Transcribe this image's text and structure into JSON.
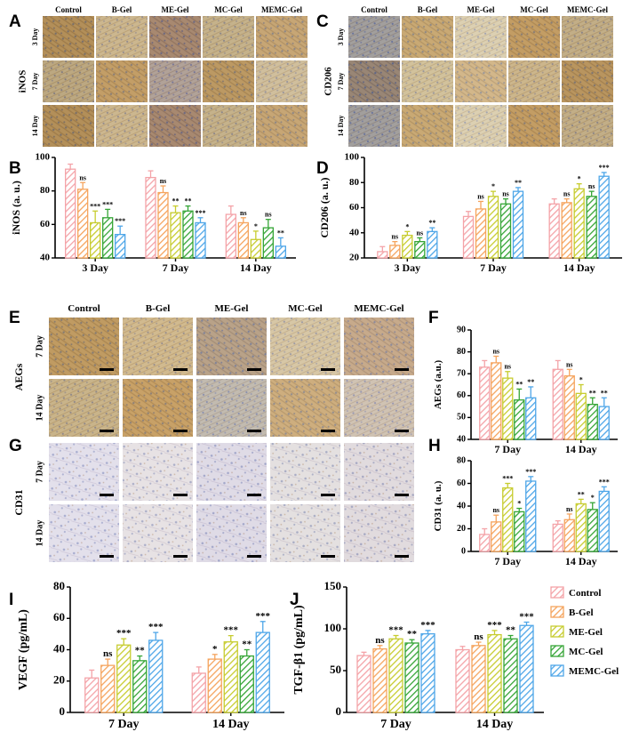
{
  "panel_labels": [
    "A",
    "B",
    "C",
    "D",
    "E",
    "F",
    "G",
    "H",
    "I",
    "J"
  ],
  "groups": [
    "Control",
    "B-Gel",
    "ME-Gel",
    "MC-Gel",
    "MEMC-Gel"
  ],
  "colors": {
    "Control": "#f4a3a8",
    "B-Gel": "#f5a45d",
    "ME-Gel": "#c7cc2f",
    "MC-Gel": "#35a536",
    "MEMC-Gel": "#4ea6e8"
  },
  "legend": [
    "Control",
    "B-Gel",
    "ME-Gel",
    "MC-Gel",
    "MEMC-Gel"
  ],
  "micrographs": {
    "A": {
      "columns": [
        "Control",
        "B-Gel",
        "ME-Gel",
        "MC-Gel",
        "MEMC-Gel"
      ],
      "rows": [
        "3 Day",
        "7 Day",
        "14 Day"
      ],
      "side_label": "iNOS"
    },
    "C": {
      "columns": [
        "Control",
        "B-Gel",
        "ME-Gel",
        "MC-Gel",
        "MEMC-Gel"
      ],
      "rows": [
        "3 Day",
        "7 Day",
        "14 Day"
      ],
      "side_label": "CD206"
    },
    "E": {
      "columns": [
        "Control",
        "B-Gel",
        "ME-Gel",
        "MC-Gel",
        "MEMC-Gel"
      ],
      "rows": [
        "7 Day",
        "14 Day"
      ],
      "side_label": "AEGs"
    },
    "G": {
      "columns": [],
      "rows": [
        "7 Day",
        "14 Day"
      ],
      "side_label": "CD31"
    }
  },
  "chart_data": [
    {
      "panel": "B",
      "type": "bar",
      "ylabel": "iNOS (a. u.)",
      "ylim": [
        40,
        100
      ],
      "yticks": [
        40,
        60,
        80,
        100
      ],
      "categories": [
        "3 Day",
        "7 Day",
        "14 Day"
      ],
      "series": [
        {
          "name": "Control",
          "values": [
            93,
            88,
            66
          ],
          "errors": [
            3,
            4,
            5
          ]
        },
        {
          "name": "B-Gel",
          "values": [
            81,
            79,
            61
          ],
          "errors": [
            4,
            4,
            3
          ]
        },
        {
          "name": "ME-Gel",
          "values": [
            61,
            67,
            51
          ],
          "errors": [
            7,
            4,
            5
          ]
        },
        {
          "name": "MC-Gel",
          "values": [
            64,
            68,
            58
          ],
          "errors": [
            5,
            3,
            5
          ]
        },
        {
          "name": "MEMC-Gel",
          "values": [
            54,
            61,
            47
          ],
          "errors": [
            5,
            3,
            5
          ]
        }
      ],
      "significance": [
        [
          "",
          "",
          "",
          ""
        ],
        [
          "ns",
          "***",
          "***",
          "***"
        ],
        [
          "ns",
          "**",
          "**",
          "***"
        ],
        [
          "ns",
          "*",
          "ns",
          "**"
        ]
      ],
      "sig": [
        [
          "ns",
          "***",
          "***",
          "***"
        ],
        [
          "ns",
          "**",
          "**",
          "***"
        ],
        [
          "ns",
          "*",
          "ns",
          "**"
        ]
      ]
    },
    {
      "panel": "D",
      "type": "bar",
      "ylabel": "CD206 (a. u.)",
      "ylim": [
        20,
        100
      ],
      "yticks": [
        20,
        40,
        60,
        80,
        100
      ],
      "categories": [
        "3 Day",
        "7 Day",
        "14 Day"
      ],
      "series": [
        {
          "name": "Control",
          "values": [
            25,
            53,
            63
          ],
          "errors": [
            4,
            4,
            4
          ]
        },
        {
          "name": "B-Gel",
          "values": [
            30,
            59,
            64
          ],
          "errors": [
            3,
            6,
            3
          ]
        },
        {
          "name": "ME-Gel",
          "values": [
            38,
            69,
            75
          ],
          "errors": [
            3,
            4,
            4
          ]
        },
        {
          "name": "MC-Gel",
          "values": [
            33,
            63,
            69
          ],
          "errors": [
            3,
            4,
            4
          ]
        },
        {
          "name": "MEMC-Gel",
          "values": [
            41,
            73,
            85
          ],
          "errors": [
            3,
            3,
            3
          ]
        }
      ],
      "sig": [
        [
          "ns",
          "*",
          "ns",
          "**"
        ],
        [
          "ns",
          "*",
          "ns",
          "**"
        ],
        [
          "ns",
          "*",
          "ns",
          "***"
        ]
      ]
    },
    {
      "panel": "F",
      "type": "bar",
      "ylabel": "AEGs (a.u.)",
      "ylim": [
        40,
        90
      ],
      "yticks": [
        40,
        50,
        60,
        70,
        80,
        90
      ],
      "categories": [
        "7 Day",
        "14 Day"
      ],
      "series": [
        {
          "name": "Control",
          "values": [
            73,
            72
          ],
          "errors": [
            3,
            4
          ]
        },
        {
          "name": "B-Gel",
          "values": [
            75,
            69
          ],
          "errors": [
            3,
            3
          ]
        },
        {
          "name": "ME-Gel",
          "values": [
            68,
            61
          ],
          "errors": [
            3,
            4
          ]
        },
        {
          "name": "MC-Gel",
          "values": [
            58,
            56
          ],
          "errors": [
            5,
            3
          ]
        },
        {
          "name": "MEMC-Gel",
          "values": [
            59,
            55
          ],
          "errors": [
            5,
            4
          ]
        }
      ],
      "sig": [
        [
          "ns",
          "ns",
          "**",
          "**"
        ],
        [
          "ns",
          "*",
          "**",
          "**"
        ]
      ]
    },
    {
      "panel": "H",
      "type": "bar",
      "ylabel": "CD31 (a. u.)",
      "ylim": [
        0,
        80
      ],
      "yticks": [
        0,
        20,
        40,
        60,
        80
      ],
      "categories": [
        "7 Day",
        "14 Day"
      ],
      "series": [
        {
          "name": "Control",
          "values": [
            15,
            24
          ],
          "errors": [
            5,
            3
          ]
        },
        {
          "name": "B-Gel",
          "values": [
            26,
            28
          ],
          "errors": [
            6,
            5
          ]
        },
        {
          "name": "ME-Gel",
          "values": [
            56,
            42
          ],
          "errors": [
            4,
            4
          ]
        },
        {
          "name": "MC-Gel",
          "values": [
            35,
            37
          ],
          "errors": [
            3,
            6
          ]
        },
        {
          "name": "MEMC-Gel",
          "values": [
            62,
            53
          ],
          "errors": [
            4,
            4
          ]
        }
      ],
      "sig": [
        [
          "ns",
          "***",
          "*",
          "***"
        ],
        [
          "ns",
          "**",
          "*",
          "***"
        ]
      ]
    },
    {
      "panel": "I",
      "type": "bar",
      "ylabel": "VEGF (pg/mL)",
      "ylim": [
        0,
        80
      ],
      "yticks": [
        0,
        20,
        40,
        60,
        80
      ],
      "categories": [
        "7 Day",
        "14 Day"
      ],
      "series": [
        {
          "name": "Control",
          "values": [
            22,
            25
          ],
          "errors": [
            5,
            4
          ]
        },
        {
          "name": "B-Gel",
          "values": [
            30,
            34
          ],
          "errors": [
            4,
            3
          ]
        },
        {
          "name": "ME-Gel",
          "values": [
            43,
            45
          ],
          "errors": [
            4,
            4
          ]
        },
        {
          "name": "MC-Gel",
          "values": [
            33,
            36
          ],
          "errors": [
            3,
            4
          ]
        },
        {
          "name": "MEMC-Gel",
          "values": [
            46,
            51
          ],
          "errors": [
            5,
            7
          ]
        }
      ],
      "sig": [
        [
          "ns",
          "***",
          "**",
          "***"
        ],
        [
          "*",
          "***",
          "**",
          "***"
        ]
      ]
    },
    {
      "panel": "J",
      "type": "bar",
      "ylabel": "TGF-β1 (pg/mL)",
      "ylim": [
        0,
        150
      ],
      "yticks": [
        0,
        50,
        100,
        150
      ],
      "categories": [
        "7 Day",
        "14 Day"
      ],
      "series": [
        {
          "name": "Control",
          "values": [
            68,
            75
          ],
          "errors": [
            4,
            4
          ]
        },
        {
          "name": "B-Gel",
          "values": [
            76,
            80
          ],
          "errors": [
            4,
            4
          ]
        },
        {
          "name": "ME-Gel",
          "values": [
            88,
            93
          ],
          "errors": [
            4,
            5
          ]
        },
        {
          "name": "MC-Gel",
          "values": [
            83,
            88
          ],
          "errors": [
            4,
            4
          ]
        },
        {
          "name": "MEMC-Gel",
          "values": [
            94,
            104
          ],
          "errors": [
            4,
            4
          ]
        }
      ],
      "sig": [
        [
          "ns",
          "***",
          "**",
          "***"
        ],
        [
          "ns",
          "***",
          "**",
          "***"
        ]
      ]
    }
  ]
}
